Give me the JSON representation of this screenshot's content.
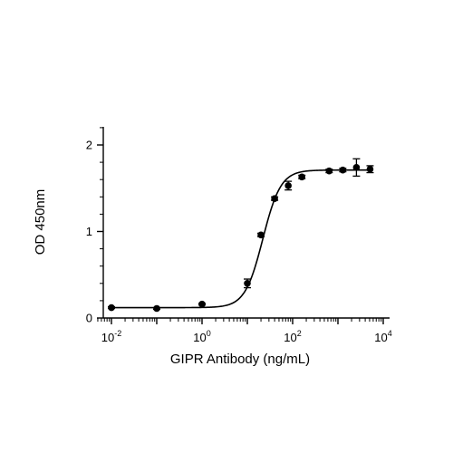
{
  "chart_data": {
    "type": "scatter",
    "xlabel": "GIPR Antibody (ng/mL)",
    "ylabel": "OD 450nm",
    "x_scale": "log",
    "xlim": [
      0.005,
      10000
    ],
    "ylim": [
      0,
      2.2
    ],
    "x_ticks": [
      {
        "base": "10",
        "exp": "-2",
        "value": 0.01
      },
      {
        "base": "10",
        "exp": "0",
        "value": 1
      },
      {
        "base": "10",
        "exp": "2",
        "value": 100
      },
      {
        "base": "10",
        "exp": "4",
        "value": 10000
      }
    ],
    "y_ticks": [
      "0",
      "1",
      "2"
    ],
    "y_tick_values": [
      0,
      1,
      2
    ],
    "grid": false,
    "legend": "none",
    "series": [
      {
        "points": [
          {
            "x": 0.01,
            "y": 0.12,
            "err": 0.01
          },
          {
            "x": 0.1,
            "y": 0.11,
            "err": 0.01
          },
          {
            "x": 1,
            "y": 0.16,
            "err": 0.01
          },
          {
            "x": 10,
            "y": 0.4,
            "err": 0.05
          },
          {
            "x": 20,
            "y": 0.96,
            "err": 0.02
          },
          {
            "x": 40,
            "y": 1.38,
            "err": 0.02
          },
          {
            "x": 80,
            "y": 1.53,
            "err": 0.05
          },
          {
            "x": 160,
            "y": 1.63,
            "err": 0.02
          },
          {
            "x": 640,
            "y": 1.7,
            "err": 0.02
          },
          {
            "x": 1280,
            "y": 1.71,
            "err": 0.02
          },
          {
            "x": 2560,
            "y": 1.74,
            "err": 0.1
          },
          {
            "x": 5120,
            "y": 1.72,
            "err": 0.04
          }
        ],
        "fit": {
          "model": "4PL",
          "bottom": 0.12,
          "top": 1.71,
          "ec50": 22,
          "hill": 2.2
        }
      }
    ],
    "colors": {
      "marks": "#000000"
    }
  }
}
